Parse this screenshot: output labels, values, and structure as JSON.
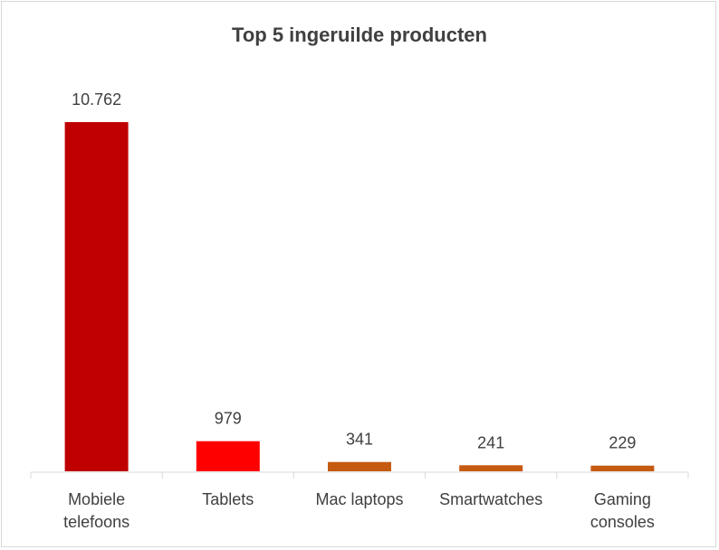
{
  "chart_data": {
    "type": "bar",
    "title": "Top 5 ingeruilde producten",
    "categories": [
      [
        "Mobiele",
        "telefoons"
      ],
      [
        "Tablets"
      ],
      [
        "Mac laptops"
      ],
      [
        "Smartwatches"
      ],
      [
        "Gaming",
        "consoles"
      ]
    ],
    "values": [
      10762,
      979,
      341,
      241,
      229
    ],
    "data_labels": [
      "10.762",
      "979",
      "341",
      "241",
      "229"
    ],
    "colors": [
      "#c00000",
      "#ff0000",
      "#c55a11",
      "#c55a11",
      "#c55a11"
    ],
    "xlabel": "",
    "ylabel": "",
    "ylim": [
      0,
      10762
    ],
    "grid": false,
    "legend": "none"
  }
}
